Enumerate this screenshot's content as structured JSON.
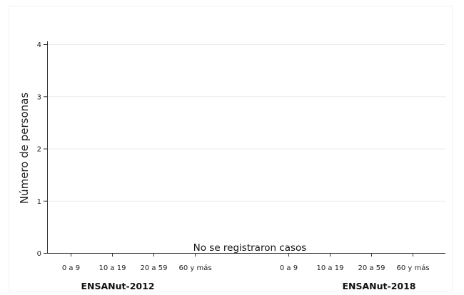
{
  "chart_data": {
    "type": "bar",
    "groups": [
      {
        "label": "ENSANut-2012",
        "categories": [
          "0 a 9",
          "10 a 19",
          "20 a 59",
          "60 y más"
        ],
        "values": [
          0,
          0,
          0,
          0
        ]
      },
      {
        "label": "ENSANut-2018",
        "categories": [
          "0 a 9",
          "10 a 19",
          "20 a 59",
          "60 y más"
        ],
        "values": [
          0,
          0,
          0,
          0
        ]
      }
    ],
    "ylabel": "Número de personas",
    "ylim": [
      0,
      4
    ],
    "yticks": [
      0,
      1,
      2,
      3,
      4
    ],
    "grid": true,
    "annotation": "No se registraron casos"
  }
}
